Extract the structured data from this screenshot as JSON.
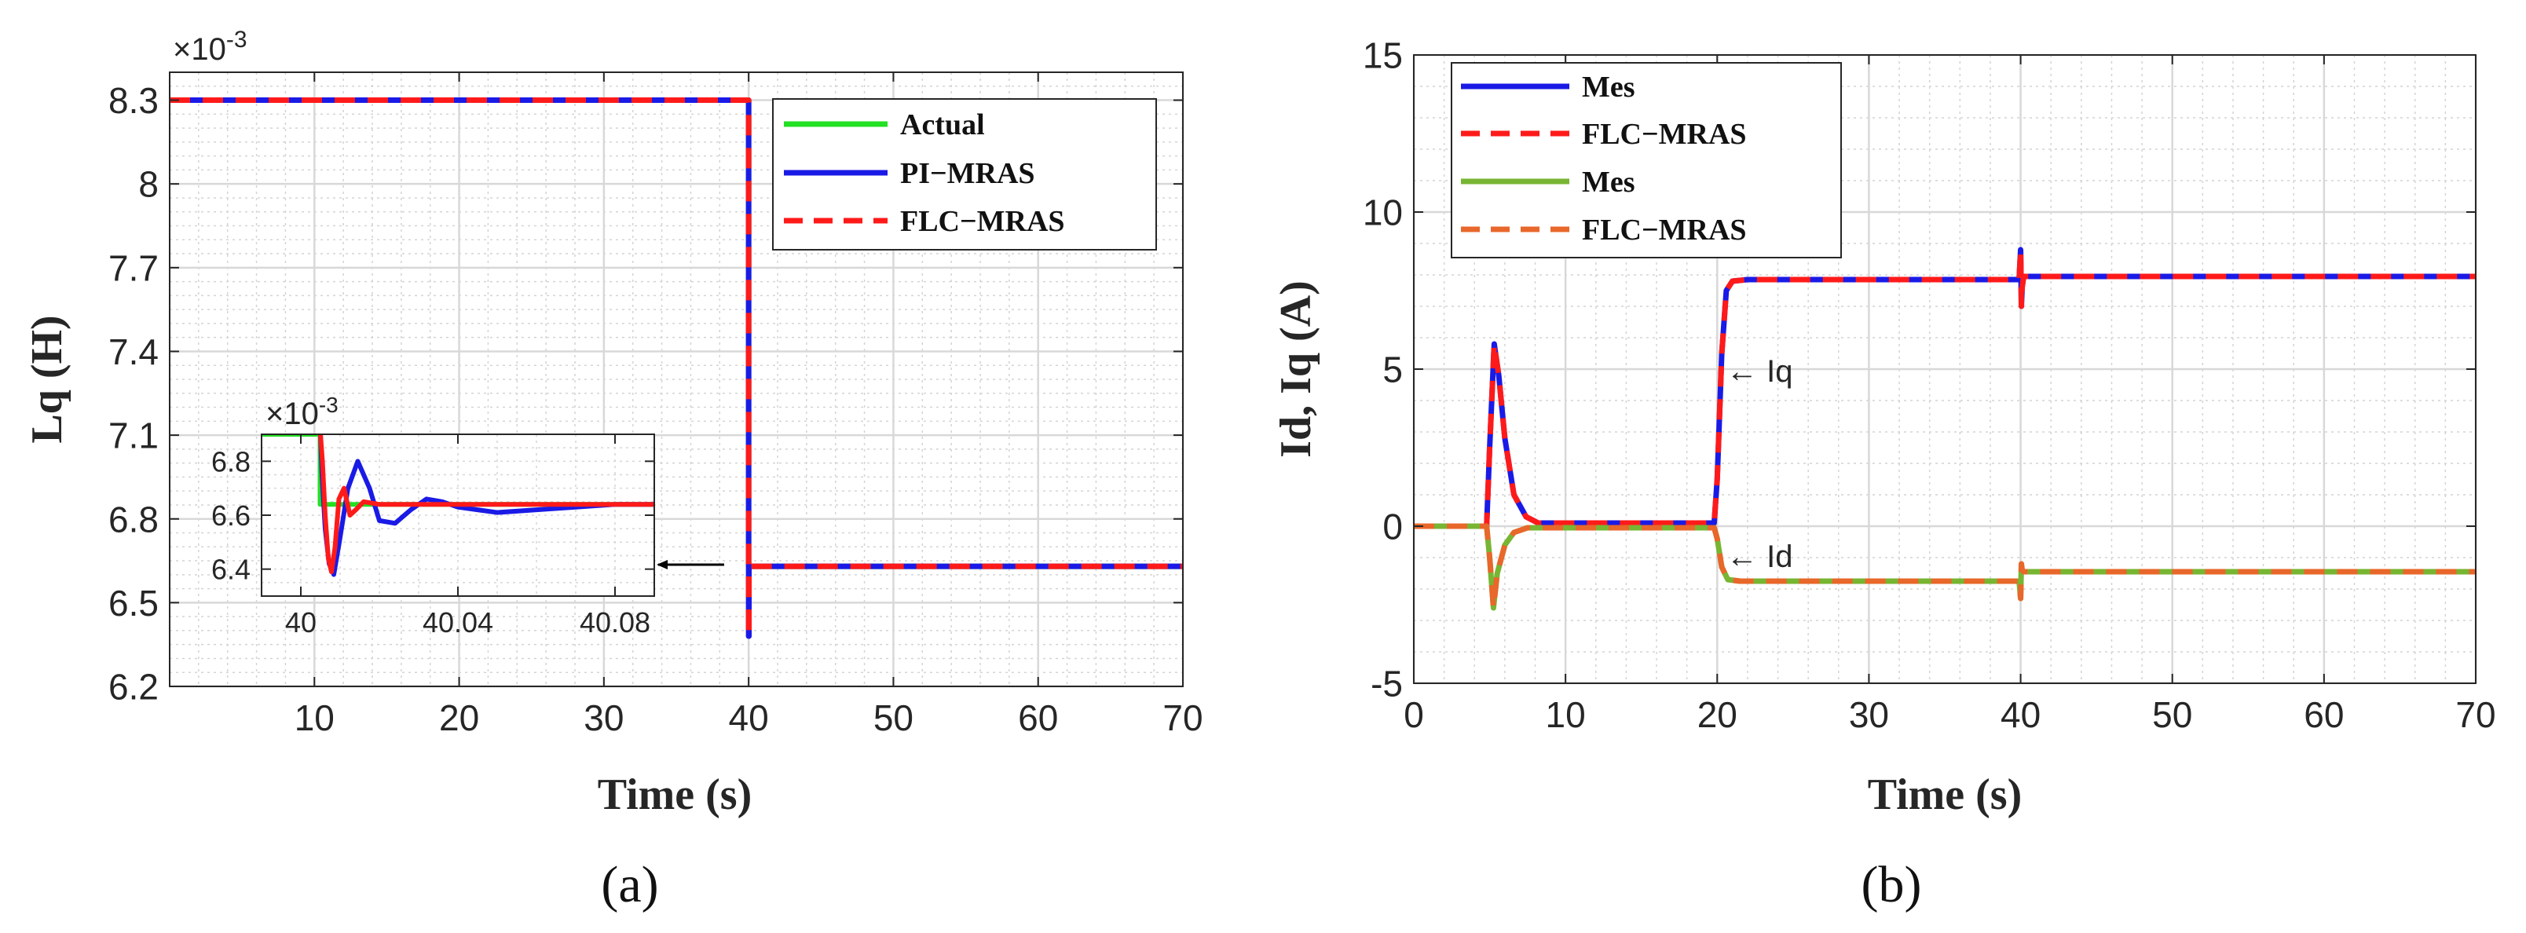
{
  "chart_data": [
    {
      "type": "line",
      "panel_label": "(a)",
      "xlabel": "Time (s)",
      "ylabel": "Lq (H)",
      "xlim": [
        0,
        70
      ],
      "ylim": [
        6.2,
        8.4
      ],
      "xticks": [
        10,
        20,
        30,
        40,
        50,
        60,
        70
      ],
      "yticks": [
        6.2,
        6.5,
        6.8,
        7.1,
        7.4,
        7.7,
        8,
        8.3
      ],
      "y_exponent_label": "×10",
      "y_exponent_power": "-3",
      "grid": true,
      "legend_position": "top-right",
      "series": [
        {
          "name": "Actual",
          "color": "#22e022",
          "style": "solid",
          "x": [
            0,
            40,
            40,
            70
          ],
          "y": [
            8.3,
            8.3,
            6.63,
            6.63
          ]
        },
        {
          "name": "PI−MRAS",
          "color": "#1a1ae6",
          "style": "solid",
          "x": [
            0,
            40,
            40,
            40.02,
            40.02,
            70
          ],
          "y": [
            8.3,
            8.3,
            6.38,
            6.38,
            6.63,
            6.63
          ]
        },
        {
          "name": "FLC−MRAS",
          "color": "#ff1a1a",
          "style": "dashed",
          "x": [
            0,
            40,
            40,
            40.02,
            40.02,
            70
          ],
          "y": [
            8.3,
            8.3,
            6.38,
            6.38,
            6.63,
            6.63
          ]
        }
      ],
      "inset": {
        "xlim": [
          39.99,
          40.09
        ],
        "ylim": [
          6.3,
          6.9
        ],
        "xticks": [
          40,
          40.04,
          40.08
        ],
        "yticks": [
          6.4,
          6.6,
          6.8
        ],
        "y_exponent_label": "×10",
        "y_exponent_power": "-3",
        "series": [
          {
            "name": "Actual",
            "color": "#22e022",
            "x": [
              39.99,
              39.9995,
              39.9995,
              40.0049,
              40.0049,
              40.09
            ],
            "y": [
              6.9,
              6.9,
              6.9,
              6.9,
              6.64,
              6.64
            ]
          },
          {
            "name": "PI−MRAS",
            "color": "#1a1ae6",
            "x": [
              40.005,
              40.0054,
              40.0062,
              40.0072,
              40.0084,
              40.0098,
              40.012,
              40.0145,
              40.0175,
              40.02,
              40.024,
              40.028,
              40.032,
              40.036,
              40.04,
              40.045,
              40.05,
              40.06,
              40.07,
              40.08,
              40.09
            ],
            "y": [
              6.9,
              6.75,
              6.55,
              6.42,
              6.38,
              6.5,
              6.7,
              6.8,
              6.7,
              6.58,
              6.57,
              6.62,
              6.66,
              6.65,
              6.63,
              6.62,
              6.61,
              6.62,
              6.63,
              6.64,
              6.64
            ]
          },
          {
            "name": "FLC−MRAS",
            "color": "#ff1a1a",
            "x": [
              40.005,
              40.0055,
              40.0062,
              40.007,
              40.0078,
              40.0087,
              40.0097,
              40.011,
              40.0125,
              40.014,
              40.016,
              40.02,
              40.025,
              40.03,
              40.04,
              40.05,
              40.06,
              40.07,
              40.08,
              40.09
            ],
            "y": [
              6.9,
              6.8,
              6.6,
              6.44,
              6.39,
              6.48,
              6.66,
              6.7,
              6.6,
              6.62,
              6.65,
              6.64,
              6.64,
              6.64,
              6.64,
              6.64,
              6.64,
              6.64,
              6.64,
              6.64
            ]
          }
        ]
      }
    },
    {
      "type": "line",
      "panel_label": "(b)",
      "xlabel": "Time (s)",
      "ylabel": "Id, Iq (A)",
      "xlim": [
        0,
        70
      ],
      "ylim": [
        -5,
        15
      ],
      "xticks": [
        0,
        10,
        20,
        30,
        40,
        50,
        60,
        70
      ],
      "yticks": [
        -5,
        0,
        5,
        10,
        15
      ],
      "grid": true,
      "legend_position": "top-left",
      "annotations": [
        "← Iq",
        "← Id"
      ],
      "series": [
        {
          "name": "Mes",
          "color": "#1a1ae6",
          "style": "solid",
          "x": [
            0,
            4.8,
            5.0,
            5.3,
            5.6,
            6.0,
            6.6,
            7.4,
            8.2,
            19.8,
            20.0,
            20.3,
            20.6,
            21,
            22,
            39.9,
            40.0,
            40.05,
            40.1,
            40.2,
            70
          ],
          "y": [
            0,
            0,
            2.5,
            5.8,
            4.8,
            2.8,
            1.0,
            0.3,
            0.1,
            0.1,
            1.5,
            5.5,
            7.5,
            7.8,
            7.85,
            7.85,
            8.8,
            7.0,
            7.6,
            7.95,
            7.95
          ]
        },
        {
          "name": "FLC−MRAS",
          "color": "#ff1a1a",
          "style": "dashed",
          "x": [
            0,
            4.8,
            5.0,
            5.3,
            5.6,
            6.0,
            6.6,
            7.4,
            8.2,
            19.8,
            20.0,
            20.3,
            20.6,
            21,
            22,
            39.9,
            40.0,
            40.05,
            40.1,
            40.2,
            70
          ],
          "y": [
            0,
            0,
            2.5,
            5.8,
            4.8,
            2.8,
            1.0,
            0.3,
            0.1,
            0.1,
            1.5,
            5.5,
            7.5,
            7.8,
            7.85,
            7.85,
            8.8,
            7.0,
            7.6,
            7.95,
            7.95
          ]
        },
        {
          "name": "Mes",
          "color": "#77b532",
          "style": "solid",
          "x": [
            0,
            4.8,
            5.0,
            5.25,
            5.5,
            6.0,
            6.6,
            7.5,
            19.8,
            20.0,
            20.3,
            20.7,
            21.5,
            39.9,
            40.0,
            40.05,
            40.1,
            40.2,
            70
          ],
          "y": [
            0,
            0,
            -1.0,
            -2.6,
            -1.5,
            -0.6,
            -0.2,
            -0.05,
            -0.05,
            -0.4,
            -1.3,
            -1.7,
            -1.75,
            -1.75,
            -2.3,
            -1.2,
            -1.4,
            -1.45,
            -1.45
          ]
        },
        {
          "name": "FLC−MRAS",
          "color": "#e8672a",
          "style": "dashed",
          "x": [
            0,
            4.8,
            5.0,
            5.25,
            5.5,
            6.0,
            6.6,
            7.5,
            19.8,
            20.0,
            20.3,
            20.7,
            21.5,
            39.9,
            40.0,
            40.05,
            40.1,
            40.2,
            70
          ],
          "y": [
            0,
            0,
            -1.0,
            -2.6,
            -1.5,
            -0.6,
            -0.2,
            -0.05,
            -0.05,
            -0.4,
            -1.3,
            -1.7,
            -1.75,
            -1.75,
            -2.3,
            -1.2,
            -1.4,
            -1.45,
            -1.45
          ]
        }
      ]
    }
  ]
}
